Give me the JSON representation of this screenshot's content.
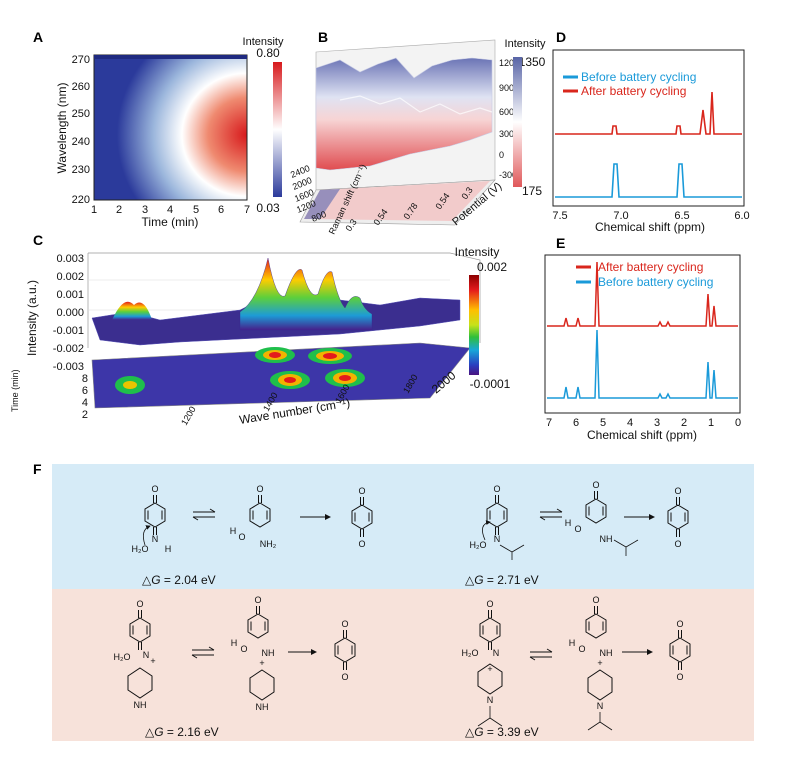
{
  "panels": {
    "A": {
      "letter": "A",
      "ylabel": "Wavelength (nm)",
      "xlabel": "Time (min)",
      "colorbar_title": "Intensity",
      "colorbar_max": "0.80",
      "colorbar_min": "0.03",
      "xticks": [
        "1",
        "2",
        "3",
        "4",
        "5",
        "6",
        "7"
      ],
      "yticks": [
        "270",
        "260",
        "250",
        "240",
        "230",
        "220"
      ]
    },
    "B": {
      "letter": "B",
      "colorbar_title": "Intensity",
      "colorbar_max": "1350",
      "colorbar_min": "175",
      "zticks": [
        "1200",
        "900",
        "600",
        "300",
        "0",
        "-300"
      ],
      "raman_axis_label": "Raman shift (cm⁻¹)",
      "raman_ticks": [
        "2400",
        "2000",
        "1600",
        "1200",
        "800"
      ],
      "potential_axis_label": "Potential (V)",
      "potential_ticks": [
        "0.3",
        "0.54",
        "0.78",
        "0.54",
        "0.3"
      ]
    },
    "C": {
      "letter": "C",
      "ylabel": "Intensity (a.u.)",
      "yticks": [
        "0.003",
        "0.002",
        "0.001",
        "0.000",
        "-0.001",
        "-0.002",
        "-0.003"
      ],
      "xlabel": "Wave number (cm⁻¹)",
      "xticks": [
        "1200",
        "1400",
        "1600",
        "1800",
        "2000"
      ],
      "time_label": "Time (min)",
      "time_ticks": [
        "8",
        "6",
        "4",
        "2"
      ],
      "colorbar_title": "Intensity",
      "colorbar_max": "0.002",
      "colorbar_min": "-0.0001"
    },
    "D": {
      "letter": "D",
      "xlabel": "Chemical shift (ppm)",
      "xticks": [
        "7.5",
        "7.0",
        "6.5",
        "6.0"
      ],
      "legend": [
        {
          "label": "Before battery cycling",
          "color": "#1a9ad9"
        },
        {
          "label": "After battery cycling",
          "color": "#d9261c"
        }
      ]
    },
    "E": {
      "letter": "E",
      "xlabel": "Chemical shift (ppm)",
      "xticks": [
        "7",
        "6",
        "5",
        "4",
        "3",
        "2",
        "1",
        "0"
      ],
      "legend": [
        {
          "label": "After battery cycling",
          "color": "#d9261c"
        },
        {
          "label": "Before battery cycling",
          "color": "#1a9ad9"
        }
      ]
    },
    "F": {
      "letter": "F",
      "reactions": [
        {
          "dg_prefix": "△",
          "dg_var": "G",
          "dg_value": " = 2.04 eV"
        },
        {
          "dg_prefix": "△",
          "dg_var": "G",
          "dg_value": " = 2.71 eV"
        },
        {
          "dg_prefix": "△",
          "dg_var": "G",
          "dg_value": " = 2.16 eV"
        },
        {
          "dg_prefix": "△",
          "dg_var": "G",
          "dg_value": " = 3.39 eV"
        }
      ],
      "atoms": {
        "O": "O",
        "H": "H",
        "H2O": "H₂O",
        "NH2": "NH₂",
        "NH": "NH",
        "N": "N",
        "HO": "H",
        "Hn": "H",
        "plus": "+"
      },
      "colors": {
        "top_band": "#d6ebf7",
        "bottom_band": "#f7e2da"
      }
    }
  },
  "chart_data": [
    {
      "type": "heatmap",
      "panel": "A",
      "x": [
        1,
        2,
        3,
        4,
        5,
        6,
        7
      ],
      "y": [
        220,
        230,
        240,
        250,
        260,
        270
      ],
      "xlabel": "Time (min)",
      "ylabel": "Wavelength (nm)",
      "xlim": [
        1,
        7
      ],
      "ylim": [
        220,
        270
      ],
      "colorbar": {
        "title": "Intensity",
        "min": 0.03,
        "max": 0.8,
        "colors": [
          "#2b3a9b",
          "#ffffff",
          "#d7191c"
        ]
      },
      "peak": {
        "time": 7,
        "wavelength": 246
      }
    },
    {
      "type": "area",
      "panel": "B",
      "description_axes": [
        "Raman shift (cm⁻¹)",
        "Potential (V)",
        "Intensity"
      ],
      "zlim": [
        -300,
        1200
      ],
      "colorbar": {
        "title": "Intensity",
        "min": 175,
        "max": 1350
      }
    },
    {
      "type": "area",
      "panel": "C",
      "xlabel": "Wave number (cm⁻¹)",
      "ylabel": "Intensity (a.u.)",
      "xlim": [
        1100,
        2000
      ],
      "ylim": [
        -0.003,
        0.003
      ],
      "colorbar": {
        "title": "Intensity",
        "min": -0.0001,
        "max": 0.002
      }
    },
    {
      "type": "line",
      "panel": "D",
      "xlabel": "Chemical shift (ppm)",
      "xlim": [
        7.5,
        6.0
      ],
      "series": [
        {
          "name": "Before battery cycling",
          "peaks": [
            7.03,
            6.5
          ]
        },
        {
          "name": "After battery cycling",
          "peaks": [
            7.03,
            6.5,
            6.33,
            6.28
          ]
        }
      ]
    },
    {
      "type": "line",
      "panel": "E",
      "xlabel": "Chemical shift (ppm)",
      "xlim": [
        7,
        0
      ],
      "series": [
        {
          "name": "After battery cycling",
          "peaks": [
            6.3,
            5.9,
            5.1,
            2.8,
            2.6,
            1.1,
            0.9
          ]
        },
        {
          "name": "Before battery cycling",
          "peaks": [
            6.3,
            5.9,
            5.1,
            2.8,
            2.6,
            1.1,
            0.9
          ]
        }
      ]
    }
  ]
}
